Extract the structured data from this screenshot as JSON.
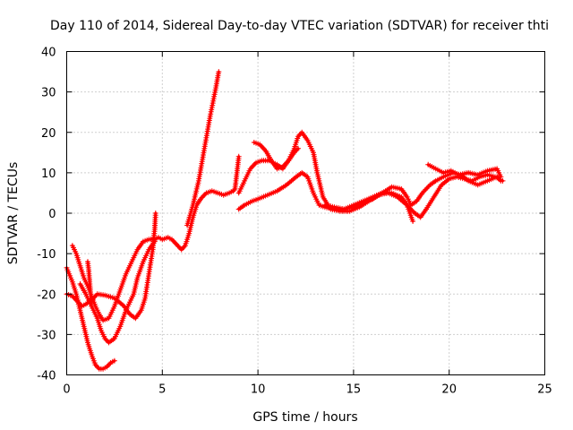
{
  "chart_data": {
    "type": "scatter",
    "title": "Day 110 of 2014, Sidereal Day-to-day VTEC variation (SDTVAR) for receiver thti",
    "xlabel": "GPS time / hours",
    "ylabel": "SDTVAR / TECUs",
    "xlim": [
      0,
      25
    ],
    "ylim": [
      -40,
      40
    ],
    "xticks": [
      "0",
      "5",
      "10",
      "15",
      "20",
      "25"
    ],
    "yticks": [
      "-40",
      "-30",
      "-20",
      "-10",
      "0",
      "10",
      "20",
      "30",
      "40"
    ],
    "grid": true,
    "legend": "none",
    "marker": "+",
    "series": [
      {
        "color": "#ff0000",
        "segments": [
          [
            [
              0.0,
              -13.5
            ],
            [
              0.3,
              -17
            ],
            [
              0.5,
              -20
            ],
            [
              0.7,
              -24
            ],
            [
              0.9,
              -28
            ],
            [
              1.1,
              -32
            ],
            [
              1.3,
              -35
            ],
            [
              1.5,
              -37.5
            ],
            [
              1.7,
              -38.5
            ],
            [
              1.9,
              -38.5
            ],
            [
              2.1,
              -38
            ],
            [
              2.3,
              -37
            ],
            [
              2.5,
              -36.5
            ]
          ],
          [
            [
              0.0,
              -20
            ],
            [
              0.3,
              -20.5
            ],
            [
              0.6,
              -22
            ],
            [
              0.8,
              -23
            ],
            [
              1.0,
              -22.5
            ],
            [
              1.3,
              -21.5
            ],
            [
              1.6,
              -20
            ],
            [
              2.0,
              -20.3
            ],
            [
              2.5,
              -21
            ],
            [
              3.0,
              -23
            ],
            [
              3.3,
              -25
            ],
            [
              3.6,
              -26
            ],
            [
              3.9,
              -24
            ],
            [
              4.1,
              -21
            ],
            [
              4.3,
              -15
            ],
            [
              4.5,
              -9
            ],
            [
              4.6,
              -4
            ],
            [
              4.65,
              0
            ]
          ],
          [
            [
              0.3,
              -8
            ],
            [
              0.5,
              -10
            ],
            [
              0.7,
              -13
            ],
            [
              0.9,
              -16
            ],
            [
              1.1,
              -18
            ],
            [
              1.3,
              -20.5
            ],
            [
              1.5,
              -23
            ],
            [
              1.7,
              -25
            ],
            [
              1.9,
              -26.5
            ],
            [
              2.2,
              -26
            ],
            [
              2.5,
              -23
            ],
            [
              2.8,
              -19
            ],
            [
              3.1,
              -15
            ],
            [
              3.4,
              -12
            ],
            [
              3.7,
              -9
            ],
            [
              4.0,
              -7
            ],
            [
              4.3,
              -6.5
            ],
            [
              4.6,
              -6.5
            ],
            [
              4.8,
              -6
            ],
            [
              5.0,
              -6.5
            ],
            [
              5.3,
              -6
            ],
            [
              5.5,
              -6.5
            ],
            [
              5.8,
              -8
            ],
            [
              6.0,
              -9
            ],
            [
              6.2,
              -8
            ],
            [
              6.4,
              -5
            ],
            [
              6.6,
              -1
            ],
            [
              6.8,
              2
            ],
            [
              7.0,
              3.5
            ],
            [
              7.3,
              5
            ],
            [
              7.6,
              5.5
            ],
            [
              7.9,
              5
            ],
            [
              8.2,
              4.5
            ],
            [
              8.5,
              5
            ],
            [
              8.7,
              5.5
            ],
            [
              8.8,
              6
            ],
            [
              8.9,
              10
            ],
            [
              9.0,
              14
            ]
          ],
          [
            [
              1.1,
              -12
            ],
            [
              1.15,
              -14
            ],
            [
              1.2,
              -17
            ],
            [
              1.25,
              -20
            ],
            [
              1.3,
              -23
            ]
          ],
          [
            [
              0.7,
              -17.5
            ],
            [
              1.0,
              -20
            ],
            [
              1.3,
              -23
            ],
            [
              1.6,
              -26
            ],
            [
              1.8,
              -29
            ],
            [
              2.0,
              -31
            ],
            [
              2.2,
              -32
            ],
            [
              2.5,
              -31
            ],
            [
              2.8,
              -28
            ],
            [
              3.1,
              -24
            ],
            [
              3.5,
              -20
            ],
            [
              3.7,
              -16
            ],
            [
              4.0,
              -12
            ],
            [
              4.3,
              -9
            ],
            [
              4.6,
              -7
            ]
          ],
          [
            [
              6.3,
              -3
            ],
            [
              6.6,
              2
            ],
            [
              6.9,
              8
            ],
            [
              7.2,
              16
            ],
            [
              7.5,
              24
            ],
            [
              7.8,
              31
            ],
            [
              7.95,
              35
            ]
          ],
          [
            [
              9.0,
              1
            ],
            [
              9.3,
              2
            ],
            [
              9.7,
              3
            ],
            [
              10.0,
              3.5
            ],
            [
              10.5,
              4.5
            ],
            [
              11.0,
              5.5
            ],
            [
              11.5,
              7
            ],
            [
              12.0,
              9
            ],
            [
              12.3,
              10
            ],
            [
              12.6,
              9
            ],
            [
              12.9,
              5
            ],
            [
              13.2,
              2
            ],
            [
              13.5,
              1.5
            ],
            [
              14.0,
              1
            ],
            [
              14.5,
              1
            ],
            [
              15.0,
              2
            ],
            [
              15.5,
              3
            ],
            [
              16.0,
              4
            ],
            [
              16.5,
              5
            ],
            [
              17.0,
              5
            ],
            [
              17.5,
              4
            ],
            [
              17.8,
              2
            ],
            [
              18.1,
              -2
            ]
          ],
          [
            [
              9.0,
              5
            ],
            [
              9.3,
              8
            ],
            [
              9.6,
              11
            ],
            [
              9.9,
              12.5
            ],
            [
              10.2,
              13
            ],
            [
              10.6,
              13
            ],
            [
              11.0,
              12
            ],
            [
              11.3,
              11
            ],
            [
              11.6,
              13
            ],
            [
              11.9,
              15
            ],
            [
              12.1,
              16
            ]
          ],
          [
            [
              9.8,
              17.5
            ],
            [
              10.1,
              17
            ],
            [
              10.4,
              15.5
            ],
            [
              10.7,
              13
            ],
            [
              11.0,
              11
            ],
            [
              11.3,
              11.5
            ],
            [
              11.6,
              13
            ],
            [
              11.9,
              16
            ],
            [
              12.1,
              19
            ],
            [
              12.3,
              20
            ],
            [
              12.6,
              18
            ],
            [
              12.9,
              15
            ],
            [
              13.1,
              10
            ],
            [
              13.4,
              4
            ],
            [
              13.8,
              1
            ],
            [
              14.3,
              0.5
            ],
            [
              14.8,
              0.5
            ],
            [
              15.3,
              1.5
            ],
            [
              15.8,
              3
            ],
            [
              16.3,
              4.5
            ],
            [
              16.8,
              5
            ],
            [
              17.3,
              4
            ],
            [
              17.8,
              2
            ],
            [
              18.2,
              0
            ],
            [
              18.5,
              -1
            ],
            [
              18.8,
              1
            ],
            [
              19.2,
              4
            ],
            [
              19.6,
              7
            ],
            [
              20.0,
              8.5
            ],
            [
              20.4,
              9
            ],
            [
              20.8,
              8.5
            ],
            [
              21.2,
              8
            ],
            [
              21.6,
              9
            ],
            [
              22.0,
              9.5
            ],
            [
              22.4,
              9
            ],
            [
              22.6,
              8.5
            ],
            [
              22.8,
              8
            ]
          ],
          [
            [
              13.5,
              2
            ],
            [
              14.0,
              1.5
            ],
            [
              14.5,
              1
            ],
            [
              15.0,
              1.5
            ],
            [
              15.5,
              2.5
            ],
            [
              16.0,
              3.5
            ],
            [
              16.5,
              5
            ],
            [
              17.0,
              6.5
            ],
            [
              17.5,
              6
            ],
            [
              17.8,
              4
            ],
            [
              18.0,
              2
            ],
            [
              18.3,
              3
            ],
            [
              18.6,
              5
            ],
            [
              19.0,
              7
            ],
            [
              19.3,
              8
            ],
            [
              19.7,
              9
            ],
            [
              20.2,
              10
            ],
            [
              20.6,
              9.5
            ],
            [
              21.0,
              8
            ],
            [
              21.5,
              7
            ],
            [
              22.0,
              8
            ],
            [
              22.5,
              9
            ],
            [
              22.7,
              8
            ]
          ],
          [
            [
              18.9,
              12
            ],
            [
              19.3,
              11
            ],
            [
              19.7,
              10
            ],
            [
              20.1,
              10.5
            ],
            [
              20.5,
              9.5
            ],
            [
              21.0,
              10
            ],
            [
              21.5,
              9.5
            ],
            [
              22.0,
              10.5
            ],
            [
              22.5,
              11
            ],
            [
              22.7,
              9
            ]
          ]
        ]
      }
    ]
  }
}
